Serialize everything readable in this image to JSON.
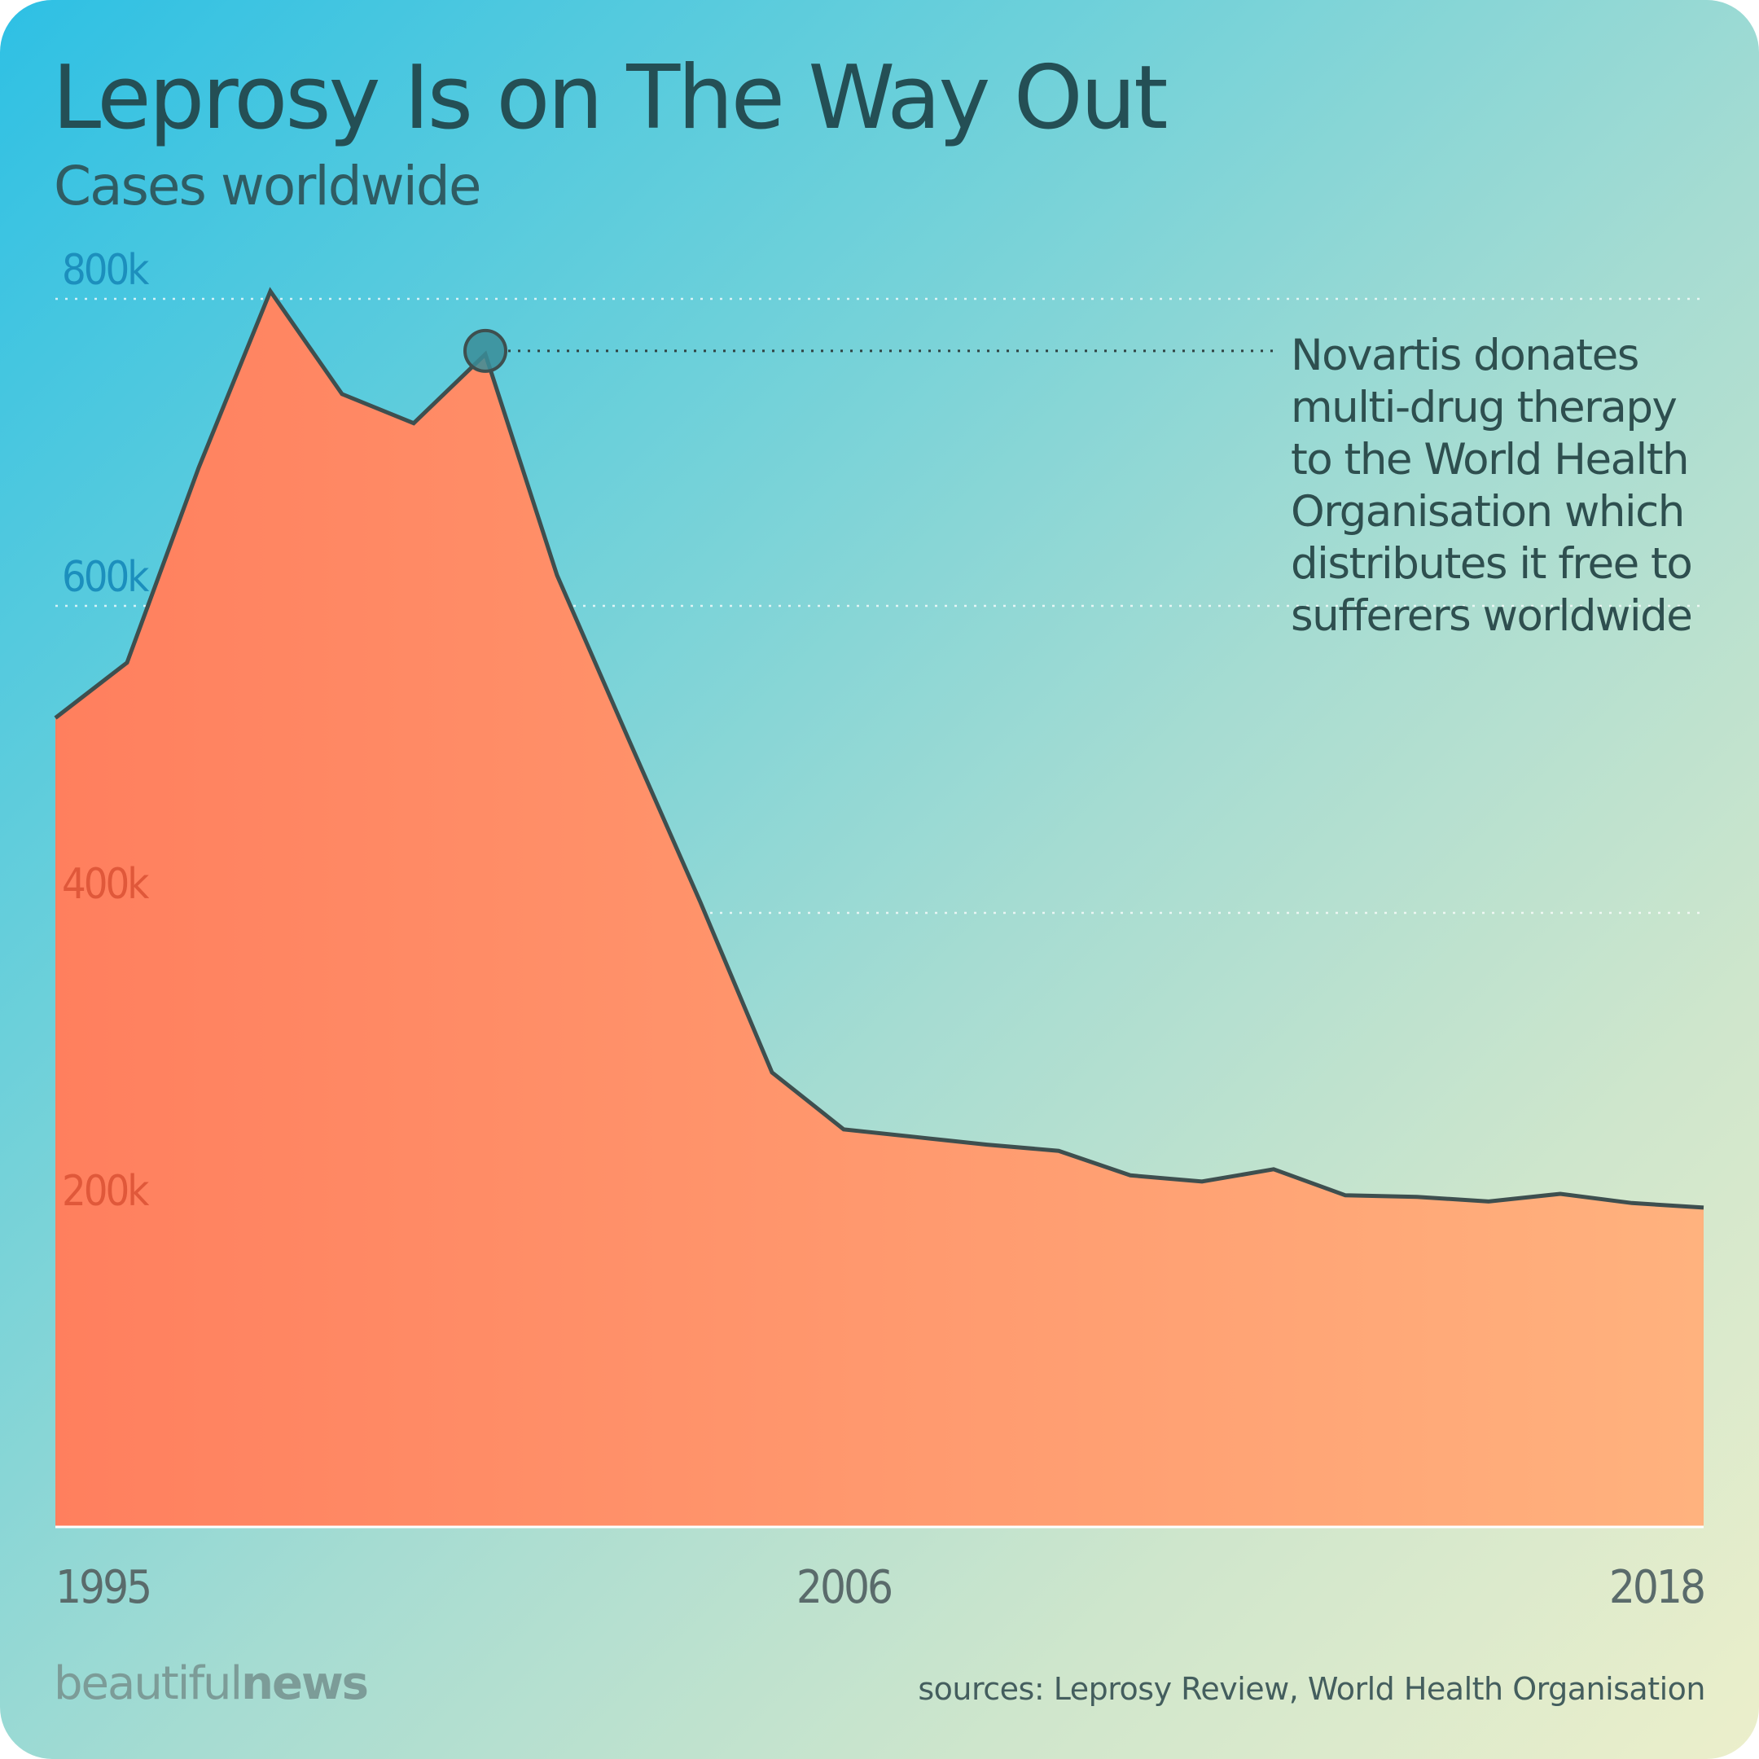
{
  "title": "Leprosy Is on The Way Out",
  "subtitle": "Cases worldwide",
  "annotation": "Novartis donates\nmulti-drug therapy\nto the World Health\nOrganisation which\ndistributes it free to\nsufferers worldwide",
  "brand": {
    "light": "beautiful",
    "bold": "news"
  },
  "sources": "sources: Leprosy Review, World Health Organisation",
  "colors": {
    "area_left": "#ff7f5e",
    "area_right": "#ffb27e",
    "line": "#3e4f4f",
    "marker": "#3a8c98",
    "ytick_upper": "#1c8fbd",
    "ytick_lower": "#e0583a"
  },
  "chart_data": {
    "type": "area",
    "title": "Leprosy Is on The Way Out",
    "subtitle": "Cases worldwide",
    "x": [
      1995,
      1996,
      1997,
      1998,
      1999,
      2000,
      2001,
      2002,
      2003,
      2004,
      2005,
      2006,
      2007,
      2008,
      2009,
      2010,
      2011,
      2012,
      2013,
      2014,
      2015,
      2016,
      2017,
      2018
    ],
    "series": [
      {
        "values": [
          527000,
          563000,
          690000,
          805000,
          738000,
          719000,
          764000,
          620000,
          513000,
          407000,
          296000,
          259000,
          254000,
          249000,
          245000,
          229000,
          225000,
          233000,
          216000,
          215000,
          212000,
          217000,
          211000,
          208000
        ]
      }
    ],
    "xticks": [
      "1995",
      "2006",
      "2018"
    ],
    "yticks": [
      {
        "value": 800000,
        "label": "800k"
      },
      {
        "value": 600000,
        "label": "600k"
      },
      {
        "value": 400000,
        "label": "400k"
      },
      {
        "value": 200000,
        "label": "200k"
      }
    ],
    "ylim": [
      0,
      800000
    ],
    "xlim": [
      1995,
      2018
    ],
    "grid": "dotted horizontal",
    "annotation": {
      "x": 2001,
      "y": 764000,
      "text": "Novartis donates multi-drug therapy to the World Health Organisation which distributes it free to sufferers worldwide"
    }
  }
}
